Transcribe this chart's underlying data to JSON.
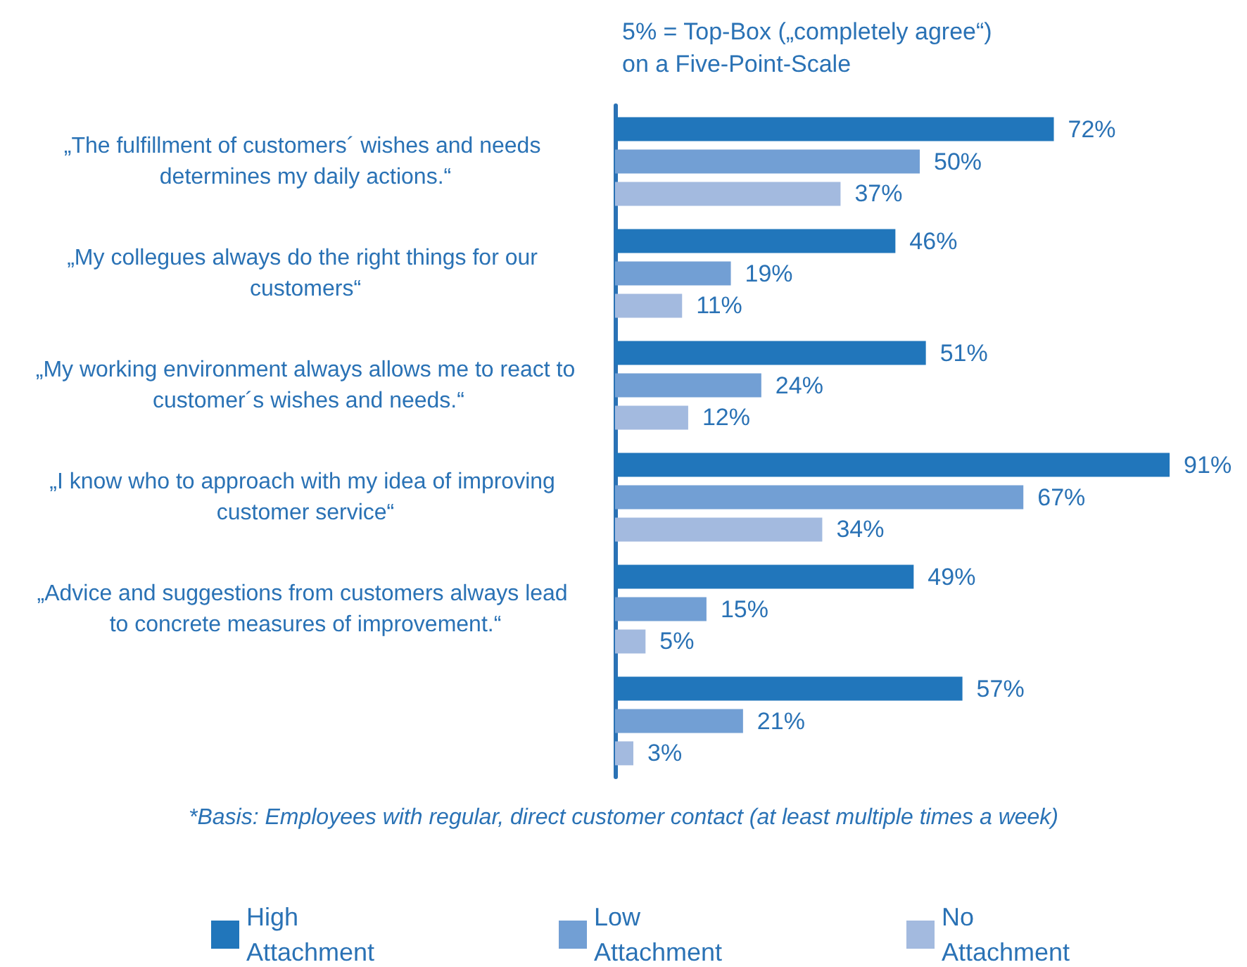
{
  "chart_data": {
    "type": "bar",
    "orientation": "horizontal",
    "title": "5% = Top-Box („completely agree“)\non a Five-Point-Scale",
    "categories": [
      "„The fulfillment of customers´ wishes and needs determines my daily actions.“",
      "„My collegues always do the right things for our customers“",
      "„My working environment always allows me to react to customer´s wishes and needs.“",
      "„I know who to approach with my idea of improving customer service“",
      "„Advice and suggestions from customers always lead to concrete measures of improvement.“",
      null
    ],
    "series": [
      {
        "name": "High Attachment",
        "color": "#2176bb",
        "values": [
          72,
          46,
          51,
          91,
          49,
          57
        ],
        "value_labels": [
          "72%",
          "46%",
          "51%",
          "91%",
          "49%",
          "57%"
        ]
      },
      {
        "name": "Low Attachment",
        "color": "#729fd4",
        "values": [
          50,
          19,
          24,
          67,
          15,
          21
        ],
        "value_labels": [
          "50%",
          "19%",
          "24%",
          "67%",
          "15%",
          "21%"
        ]
      },
      {
        "name": "No Attachment",
        "color": "#a3badf",
        "values": [
          37,
          11,
          12,
          34,
          5,
          3
        ],
        "value_labels": [
          "37%",
          "11%",
          "12%",
          "34%",
          "5%",
          "3%"
        ]
      }
    ],
    "legend": "bottom",
    "tick_labels": "y",
    "annotations": [
      "*Basis: Employees with regular, direct customer contact (at least multiple times a week)"
    ]
  }
}
